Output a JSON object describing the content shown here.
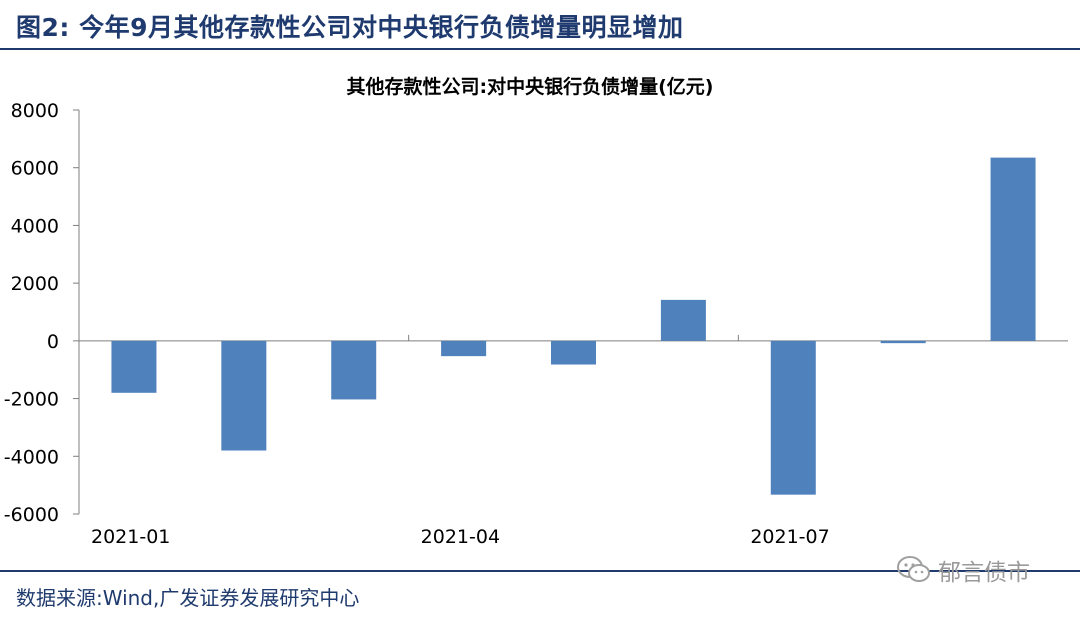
{
  "figure": {
    "label": "图2:",
    "title": "今年9月其他存款性公司对中央银行负债增量明显增加",
    "source": "数据来源:Wind,广发证券发展研究中心",
    "watermark": "郁言债市",
    "watermark_icon": "wechat-icon"
  },
  "colors": {
    "bar": "#4f81bd",
    "rule": "#1f3a6e",
    "axis": "#7f7f7f"
  },
  "chart_data": {
    "type": "bar",
    "title": "其他存款性公司:对中央银行负债增量(亿元)",
    "categories": [
      "2021-01",
      "2021-02",
      "2021-03",
      "2021-04",
      "2021-05",
      "2021-06",
      "2021-07",
      "2021-08",
      "2021-09"
    ],
    "x_tick_labels": [
      "2021-01",
      "2021-04",
      "2021-07"
    ],
    "values": [
      -1800,
      -3800,
      -2030,
      -530,
      -820,
      1420,
      -5330,
      -80,
      6350
    ],
    "ylim": [
      -6000,
      8000
    ],
    "yticks": [
      -6000,
      -4000,
      -2000,
      0,
      2000,
      4000,
      6000,
      8000
    ],
    "xlabel": "",
    "ylabel": "",
    "grid": false,
    "legend": "none"
  }
}
